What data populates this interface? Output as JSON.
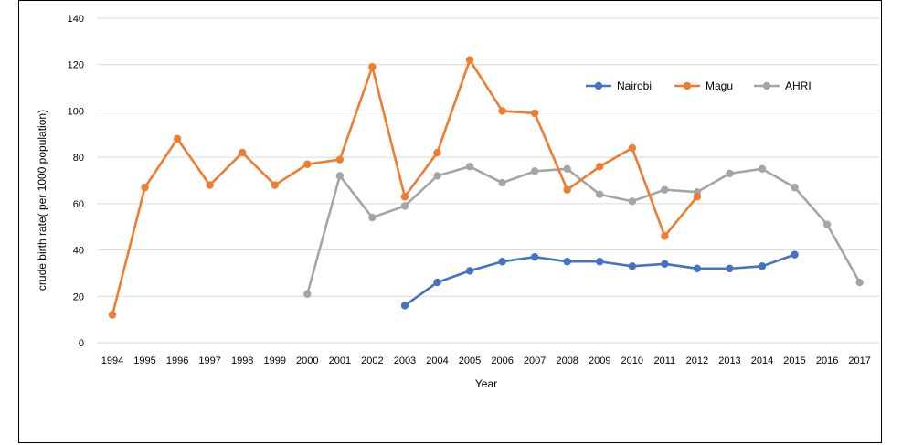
{
  "chart_data": {
    "type": "line",
    "title": "",
    "xlabel": "Year",
    "ylabel": "crude birth rate( per 1000 population)",
    "ylim": [
      0,
      140
    ],
    "yticks": [
      0,
      20,
      40,
      60,
      80,
      100,
      120,
      140
    ],
    "grid": true,
    "legend_position": "top-right",
    "categories": [
      "1994",
      "1995",
      "1996",
      "1997",
      "1998",
      "1999",
      "2000",
      "2001",
      "2002",
      "2003",
      "2004",
      "2005",
      "2006",
      "2007",
      "2008",
      "2009",
      "2010",
      "2011",
      "2012",
      "2013",
      "2014",
      "2015",
      "2016",
      "2017"
    ],
    "series": [
      {
        "name": "Nairobi",
        "color": "#4472C4",
        "values": [
          null,
          null,
          null,
          null,
          null,
          null,
          null,
          null,
          null,
          16,
          26,
          31,
          35,
          37,
          35,
          35,
          33,
          34,
          32,
          32,
          33,
          38,
          null,
          null
        ]
      },
      {
        "name": "Magu",
        "color": "#ED7D31",
        "values": [
          12,
          67,
          88,
          68,
          82,
          68,
          77,
          79,
          119,
          63,
          82,
          122,
          100,
          99,
          66,
          76,
          84,
          46,
          63,
          null,
          null,
          null,
          null,
          null
        ]
      },
      {
        "name": "AHRI",
        "color": "#A5A5A5",
        "values": [
          null,
          null,
          null,
          null,
          null,
          null,
          21,
          72,
          54,
          59,
          72,
          76,
          69,
          74,
          75,
          64,
          61,
          66,
          65,
          73,
          75,
          67,
          51,
          26
        ]
      }
    ]
  }
}
